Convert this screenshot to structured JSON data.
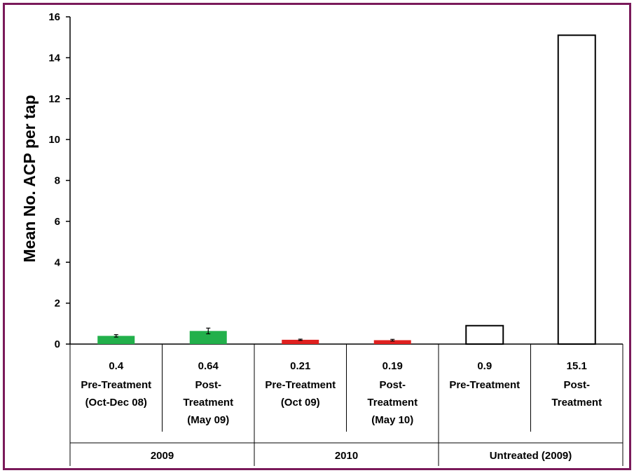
{
  "chart_data": {
    "type": "bar",
    "ylabel": "Mean No. ACP per tap",
    "ylim": [
      0,
      16
    ],
    "yticks": [
      0,
      2,
      4,
      6,
      8,
      10,
      12,
      14,
      16
    ],
    "grid": false,
    "legend": "none",
    "categories": [
      {
        "value_label": "0.4",
        "label_lines": [
          "Pre-Treatment",
          "(Oct-Dec 08)"
        ]
      },
      {
        "value_label": "0.64",
        "label_lines": [
          "Post-",
          "Treatment",
          "(May 09)"
        ]
      },
      {
        "value_label": "0.21",
        "label_lines": [
          "Pre-Treatment",
          "(Oct 09)"
        ]
      },
      {
        "value_label": "0.19",
        "label_lines": [
          "Post-",
          "Treatment",
          "(May 10)"
        ]
      },
      {
        "value_label": "0.9",
        "label_lines": [
          "Pre-Treatment"
        ]
      },
      {
        "value_label": "15.1",
        "label_lines": [
          "Post-",
          "Treatment"
        ]
      }
    ],
    "values": [
      0.4,
      0.64,
      0.21,
      0.19,
      0.9,
      15.1
    ],
    "errors": [
      0.06,
      0.14,
      0.03,
      0.04,
      0,
      0
    ],
    "bar_colors": [
      "#22b04b",
      "#22b04b",
      "#e0201f",
      "#e0201f",
      "#ffffff",
      "#ffffff"
    ],
    "groups": [
      {
        "label": "2009",
        "span": [
          0,
          1
        ]
      },
      {
        "label": "2010",
        "span": [
          2,
          3
        ]
      },
      {
        "label": "Untreated (2009)",
        "span": [
          4,
          5
        ]
      }
    ]
  }
}
